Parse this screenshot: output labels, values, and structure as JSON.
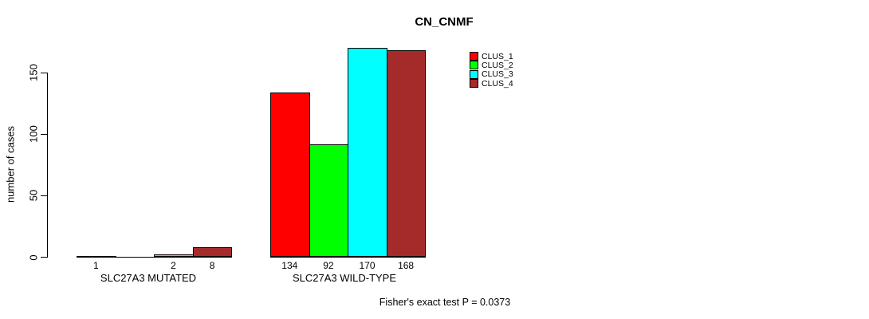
{
  "title": "CN_CNMF",
  "footer": "Fisher's exact test P = 0.0373",
  "accent_colors": {
    "clus_1": "#FF0000",
    "clus_2": "#00FF00",
    "clus_3": "#00FFFF",
    "clus_4": "#A52A2A"
  },
  "legend": {
    "entries": [
      {
        "label": "CLUS_1",
        "color": "#FF0000"
      },
      {
        "label": "CLUS_2",
        "color": "#00FF00"
      },
      {
        "label": "CLUS_3",
        "color": "#00FFFF"
      },
      {
        "label": "CLUS_4",
        "color": "#A52A2A"
      }
    ]
  },
  "chart_data": {
    "type": "bar",
    "title": "CN_CNMF",
    "xlabel": "",
    "ylabel": "number of cases",
    "ylim": [
      0,
      175
    ],
    "yticks": [
      0,
      50,
      100,
      150
    ],
    "grid": false,
    "legend_position": "top-right-inside",
    "categories": [
      "SLC27A3 MUTATED",
      "SLC27A3 WILD-TYPE"
    ],
    "series": [
      {
        "name": "CLUS_1",
        "color": "#FF0000",
        "values": [
          1,
          134
        ]
      },
      {
        "name": "CLUS_2",
        "color": "#00FF00",
        "values": [
          0,
          92
        ]
      },
      {
        "name": "CLUS_3",
        "color": "#00FFFF",
        "values": [
          2,
          170
        ]
      },
      {
        "name": "CLUS_4",
        "color": "#A52A2A",
        "values": [
          8,
          168
        ]
      }
    ],
    "bar_value_labels": [
      [
        "1",
        "",
        "2",
        "8"
      ],
      [
        "134",
        "92",
        "170",
        "168"
      ]
    ],
    "annotation": "Fisher's exact test P = 0.0373"
  }
}
